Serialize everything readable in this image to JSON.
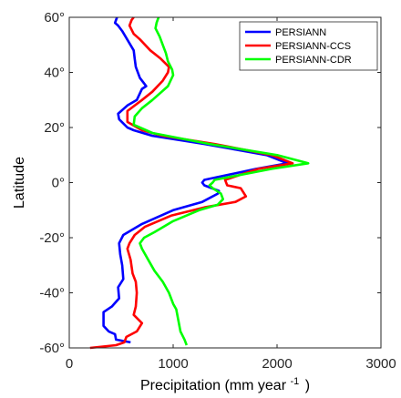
{
  "chart_data": {
    "type": "line",
    "xlabel": "Precipitation (mm year",
    "xlabel_superscript": "-1",
    "xlabel_close": ")",
    "ylabel": "Latitude",
    "xlim": [
      0,
      3000
    ],
    "ylim": [
      -60,
      60
    ],
    "xticks": [
      0,
      1000,
      2000,
      3000
    ],
    "xtick_labels": [
      "0",
      "1000",
      "2000",
      "3000"
    ],
    "yticks": [
      -60,
      -40,
      -20,
      0,
      20,
      40,
      60
    ],
    "ytick_labels": [
      "-60°",
      "-40°",
      "-20°",
      "0°",
      "20°",
      "40°",
      "60°"
    ],
    "grid": false,
    "legend_position": "top-right",
    "series": [
      {
        "name": "PERSIANN",
        "color": "#0000ff",
        "points": [
          [
            590,
            -58
          ],
          [
            450,
            -57
          ],
          [
            440,
            -55
          ],
          [
            380,
            -54
          ],
          [
            330,
            -52
          ],
          [
            330,
            -47
          ],
          [
            410,
            -45
          ],
          [
            480,
            -42
          ],
          [
            470,
            -38
          ],
          [
            520,
            -35
          ],
          [
            510,
            -30
          ],
          [
            490,
            -26
          ],
          [
            480,
            -22
          ],
          [
            520,
            -19
          ],
          [
            700,
            -15
          ],
          [
            1000,
            -10
          ],
          [
            1280,
            -7
          ],
          [
            1430,
            -4
          ],
          [
            1440,
            -3
          ],
          [
            1300,
            -1
          ],
          [
            1280,
            0
          ],
          [
            1300,
            1
          ],
          [
            1800,
            5
          ],
          [
            2100,
            7
          ],
          [
            1900,
            10
          ],
          [
            1300,
            14
          ],
          [
            800,
            17
          ],
          [
            620,
            19
          ],
          [
            560,
            20
          ],
          [
            480,
            23
          ],
          [
            470,
            25
          ],
          [
            560,
            28
          ],
          [
            650,
            30
          ],
          [
            700,
            34
          ],
          [
            740,
            35
          ],
          [
            680,
            38
          ],
          [
            640,
            42
          ],
          [
            630,
            45
          ],
          [
            620,
            48
          ],
          [
            510,
            55
          ],
          [
            470,
            57
          ],
          [
            440,
            58
          ],
          [
            460,
            60
          ]
        ]
      },
      {
        "name": "PERSIANN-CCS",
        "color": "#ff0000",
        "points": [
          [
            200,
            -60
          ],
          [
            450,
            -59
          ],
          [
            530,
            -58
          ],
          [
            550,
            -56
          ],
          [
            650,
            -54
          ],
          [
            700,
            -51
          ],
          [
            620,
            -48
          ],
          [
            640,
            -45
          ],
          [
            650,
            -40
          ],
          [
            640,
            -36
          ],
          [
            610,
            -33
          ],
          [
            590,
            -28
          ],
          [
            560,
            -24
          ],
          [
            580,
            -22
          ],
          [
            630,
            -19
          ],
          [
            730,
            -16
          ],
          [
            980,
            -12
          ],
          [
            1300,
            -9
          ],
          [
            1600,
            -7
          ],
          [
            1700,
            -5
          ],
          [
            1650,
            -2
          ],
          [
            1520,
            -1
          ],
          [
            1500,
            1
          ],
          [
            1820,
            5
          ],
          [
            2150,
            7
          ],
          [
            1950,
            10
          ],
          [
            1400,
            14
          ],
          [
            900,
            17
          ],
          [
            700,
            19
          ],
          [
            560,
            22
          ],
          [
            560,
            26
          ],
          [
            700,
            30
          ],
          [
            800,
            33
          ],
          [
            900,
            37
          ],
          [
            950,
            40
          ],
          [
            960,
            42
          ],
          [
            880,
            45
          ],
          [
            780,
            48
          ],
          [
            680,
            52
          ],
          [
            620,
            54
          ],
          [
            580,
            57
          ],
          [
            600,
            59
          ],
          [
            620,
            60
          ]
        ]
      },
      {
        "name": "PERSIANN-CDR",
        "color": "#00ff00",
        "points": [
          [
            1130,
            -59
          ],
          [
            1110,
            -57
          ],
          [
            1070,
            -54
          ],
          [
            1050,
            -50
          ],
          [
            1030,
            -46
          ],
          [
            1000,
            -44
          ],
          [
            960,
            -40
          ],
          [
            900,
            -36
          ],
          [
            820,
            -32
          ],
          [
            760,
            -28
          ],
          [
            700,
            -24
          ],
          [
            680,
            -22
          ],
          [
            720,
            -20
          ],
          [
            820,
            -18
          ],
          [
            1000,
            -14
          ],
          [
            1250,
            -10
          ],
          [
            1430,
            -8
          ],
          [
            1480,
            -6
          ],
          [
            1460,
            -4
          ],
          [
            1380,
            -2
          ],
          [
            1350,
            -1
          ],
          [
            1380,
            0
          ],
          [
            1400,
            1
          ],
          [
            1950,
            5
          ],
          [
            2300,
            7
          ],
          [
            2000,
            10
          ],
          [
            1350,
            14
          ],
          [
            800,
            18
          ],
          [
            620,
            21
          ],
          [
            630,
            24
          ],
          [
            700,
            27
          ],
          [
            800,
            30
          ],
          [
            950,
            35
          ],
          [
            1000,
            39
          ],
          [
            990,
            41
          ],
          [
            950,
            44
          ],
          [
            930,
            47
          ],
          [
            900,
            50
          ],
          [
            870,
            53
          ],
          [
            830,
            56
          ],
          [
            840,
            58
          ],
          [
            860,
            60
          ]
        ]
      }
    ]
  }
}
